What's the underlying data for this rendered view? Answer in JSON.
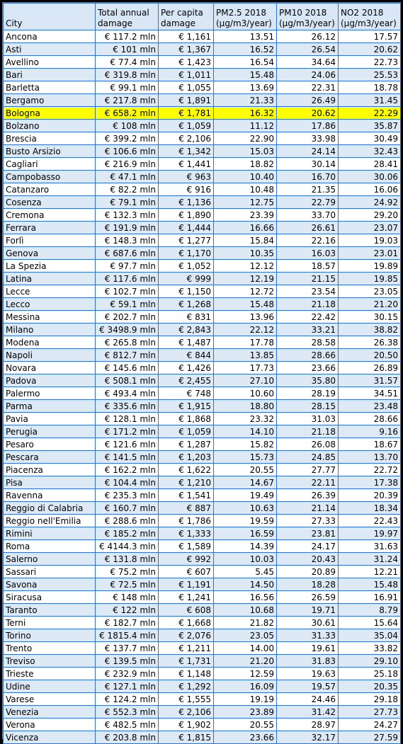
{
  "headers": {
    "city": "City",
    "total_damage": "Total annual damage",
    "per_capita": "Per capita damage",
    "pm25": "PM2.5 2018 (μg/m3/year)",
    "pm10": "PM10 2018 (μg/m3/year)",
    "no2": "NO2 2018 (μg/m3/year)"
  },
  "highlight_color": "#ffff00",
  "rows": [
    {
      "city": "Ancona",
      "total": "€ 117.2 mln",
      "per_capita": "€ 1,161",
      "pm25": "13.51",
      "pm10": "26.12",
      "no2": "17.57"
    },
    {
      "city": "Asti",
      "total": "€ 101 mln",
      "per_capita": "€ 1,367",
      "pm25": "16.52",
      "pm10": "26.54",
      "no2": "20.62"
    },
    {
      "city": "Avellino",
      "total": "€ 77.4 mln",
      "per_capita": "€ 1,423",
      "pm25": "16.54",
      "pm10": "34.64",
      "no2": "22.73"
    },
    {
      "city": "Bari",
      "total": "€ 319.8 mln",
      "per_capita": "€ 1,011",
      "pm25": "15.48",
      "pm10": "24.06",
      "no2": "25.53"
    },
    {
      "city": "Barletta",
      "total": "€ 99.1 mln",
      "per_capita": "€ 1,055",
      "pm25": "13.69",
      "pm10": "22.31",
      "no2": "18.78"
    },
    {
      "city": "Bergamo",
      "total": "€ 217.8 mln",
      "per_capita": "€ 1,891",
      "pm25": "21.33",
      "pm10": "26.49",
      "no2": "31.45"
    },
    {
      "city": "Bologna",
      "total": "€ 658.2 mln",
      "per_capita": "€ 1,781",
      "pm25": "16.32",
      "pm10": "20.62",
      "no2": "22.29",
      "highlight": true
    },
    {
      "city": "Bolzano",
      "total": "€ 108 mln",
      "per_capita": "€ 1,059",
      "pm25": "11.12",
      "pm10": "17.86",
      "no2": "35.87"
    },
    {
      "city": "Brescia",
      "total": "€ 399.2 mln",
      "per_capita": "€ 2,106",
      "pm25": "22.90",
      "pm10": "33.98",
      "no2": "30.49"
    },
    {
      "city": "Busto Arsizio",
      "total": "€ 106.6 mln",
      "per_capita": "€ 1,342",
      "pm25": "15.03",
      "pm10": "24.14",
      "no2": "32.43"
    },
    {
      "city": "Cagliari",
      "total": "€ 216.9 mln",
      "per_capita": "€ 1,441",
      "pm25": "18.82",
      "pm10": "30.14",
      "no2": "28.41"
    },
    {
      "city": "Campobasso",
      "total": "€ 47.1 mln",
      "per_capita": "€ 963",
      "pm25": "10.40",
      "pm10": "16.70",
      "no2": "30.06"
    },
    {
      "city": "Catanzaro",
      "total": "€ 82.2 mln",
      "per_capita": "€ 916",
      "pm25": "10.48",
      "pm10": "21.35",
      "no2": "16.06"
    },
    {
      "city": "Cosenza",
      "total": "€ 79.1 mln",
      "per_capita": "€ 1,136",
      "pm25": "12.75",
      "pm10": "22.79",
      "no2": "24.92"
    },
    {
      "city": "Cremona",
      "total": "€ 132.3 mln",
      "per_capita": "€ 1,890",
      "pm25": "23.39",
      "pm10": "33.70",
      "no2": "29.20"
    },
    {
      "city": "Ferrara",
      "total": "€ 191.9 mln",
      "per_capita": "€ 1,444",
      "pm25": "16.66",
      "pm10": "26.61",
      "no2": "23.07"
    },
    {
      "city": "Forlì",
      "total": "€ 148.3 mln",
      "per_capita": "€ 1,277",
      "pm25": "15.84",
      "pm10": "22.16",
      "no2": "19.03"
    },
    {
      "city": "Genova",
      "total": "€ 687.6 mln",
      "per_capita": "€ 1,170",
      "pm25": "10.35",
      "pm10": "16.03",
      "no2": "23.01"
    },
    {
      "city": "La Spezia",
      "total": "€ 97.7 mln",
      "per_capita": "€ 1,052",
      "pm25": "12.12",
      "pm10": "18.57",
      "no2": "19.89"
    },
    {
      "city": "Latina",
      "total": "€ 117.6 mln",
      "per_capita": "€ 999",
      "pm25": "12.19",
      "pm10": "21.15",
      "no2": "19.85"
    },
    {
      "city": "Lecce",
      "total": "€ 102.7 mln",
      "per_capita": "€ 1,150",
      "pm25": "12.72",
      "pm10": "23.54",
      "no2": "23.05"
    },
    {
      "city": "Lecco",
      "total": "€ 59.1 mln",
      "per_capita": "€ 1,268",
      "pm25": "15.48",
      "pm10": "21.18",
      "no2": "21.20"
    },
    {
      "city": "Messina",
      "total": "€ 202.7 mln",
      "per_capita": "€ 831",
      "pm25": "13.96",
      "pm10": "22.42",
      "no2": "30.15"
    },
    {
      "city": "Milano",
      "total": "€ 3498.9 mln",
      "per_capita": "€ 2,843",
      "pm25": "22.12",
      "pm10": "33.21",
      "no2": "38.82"
    },
    {
      "city": "Modena",
      "total": "€ 265.8 mln",
      "per_capita": "€ 1,487",
      "pm25": "17.78",
      "pm10": "28.58",
      "no2": "26.38"
    },
    {
      "city": "Napoli",
      "total": "€ 812.7 mln",
      "per_capita": "€ 844",
      "pm25": "13.85",
      "pm10": "28.66",
      "no2": "20.50"
    },
    {
      "city": "Novara",
      "total": "€ 145.6 mln",
      "per_capita": "€ 1,426",
      "pm25": "17.73",
      "pm10": "23.66",
      "no2": "26.89"
    },
    {
      "city": "Padova",
      "total": "€ 508.1 mln",
      "per_capita": "€ 2,455",
      "pm25": "27.10",
      "pm10": "35.80",
      "no2": "31.57"
    },
    {
      "city": "Palermo",
      "total": "€ 493.4 mln",
      "per_capita": "€ 748",
      "pm25": "10.60",
      "pm10": "28.19",
      "no2": "34.51"
    },
    {
      "city": "Parma",
      "total": "€ 335.6 mln",
      "per_capita": "€ 1,915",
      "pm25": "18.80",
      "pm10": "28.15",
      "no2": "23.48"
    },
    {
      "city": "Pavia",
      "total": "€ 128.1 mln",
      "per_capita": "€ 1,868",
      "pm25": "23.32",
      "pm10": "31.03",
      "no2": "28.66"
    },
    {
      "city": "Perugia",
      "total": "€ 171.2 mln",
      "per_capita": "€ 1,059",
      "pm25": "14.10",
      "pm10": "21.18",
      "no2": "9.16"
    },
    {
      "city": "Pesaro",
      "total": "€ 121.6 mln",
      "per_capita": "€ 1,287",
      "pm25": "15.82",
      "pm10": "26.08",
      "no2": "18.67"
    },
    {
      "city": "Pescara",
      "total": "€ 141.5 mln",
      "per_capita": "€ 1,203",
      "pm25": "15.73",
      "pm10": "24.85",
      "no2": "13.70"
    },
    {
      "city": "Piacenza",
      "total": "€ 162.2 mln",
      "per_capita": "€ 1,622",
      "pm25": "20.55",
      "pm10": "27.77",
      "no2": "22.72"
    },
    {
      "city": "Pisa",
      "total": "€ 104.4 mln",
      "per_capita": "€ 1,210",
      "pm25": "14.67",
      "pm10": "22.11",
      "no2": "17.38"
    },
    {
      "city": "Ravenna",
      "total": "€ 235.3 mln",
      "per_capita": "€ 1,541",
      "pm25": "19.49",
      "pm10": "26.39",
      "no2": "20.39"
    },
    {
      "city": "Reggio di Calabria",
      "total": "€ 160.7 mln",
      "per_capita": "€ 887",
      "pm25": "10.63",
      "pm10": "21.14",
      "no2": "18.34"
    },
    {
      "city": "Reggio nell'Emilia",
      "total": "€ 288.6 mln",
      "per_capita": "€ 1,786",
      "pm25": "19.59",
      "pm10": "27.33",
      "no2": "22.43"
    },
    {
      "city": "Rimini",
      "total": "€ 185.2 mln",
      "per_capita": "€ 1,333",
      "pm25": "16.59",
      "pm10": "23.81",
      "no2": "19.97"
    },
    {
      "city": "Roma",
      "total": "€ 4144.3 mln",
      "per_capita": "€ 1,589",
      "pm25": "14.39",
      "pm10": "24.17",
      "no2": "31.63"
    },
    {
      "city": "Salerno",
      "total": "€ 131.8 mln",
      "per_capita": "€ 992",
      "pm25": "10.03",
      "pm10": "20.43",
      "no2": "31.24"
    },
    {
      "city": "Sassari",
      "total": "€ 75.2 mln",
      "per_capita": "€ 607",
      "pm25": "5.45",
      "pm10": "20.89",
      "no2": "12.21"
    },
    {
      "city": "Savona",
      "total": "€ 72.5 mln",
      "per_capita": "€ 1,191",
      "pm25": "14.50",
      "pm10": "18.28",
      "no2": "15.48"
    },
    {
      "city": "Siracusa",
      "total": "€ 148 mln",
      "per_capita": "€ 1,241",
      "pm25": "16.56",
      "pm10": "26.59",
      "no2": "16.91"
    },
    {
      "city": "Taranto",
      "total": "€ 122 mln",
      "per_capita": "€ 608",
      "pm25": "10.68",
      "pm10": "19.71",
      "no2": "8.79"
    },
    {
      "city": "Terni",
      "total": "€ 182.7 mln",
      "per_capita": "€ 1,668",
      "pm25": "21.82",
      "pm10": "30.61",
      "no2": "15.64"
    },
    {
      "city": "Torino",
      "total": "€ 1815.4 mln",
      "per_capita": "€ 2,076",
      "pm25": "23.05",
      "pm10": "31.33",
      "no2": "35.04"
    },
    {
      "city": "Trento",
      "total": "€ 137.7 mln",
      "per_capita": "€ 1,211",
      "pm25": "14.00",
      "pm10": "19.61",
      "no2": "33.82"
    },
    {
      "city": "Treviso",
      "total": "€ 139.5 mln",
      "per_capita": "€ 1,731",
      "pm25": "21.20",
      "pm10": "31.83",
      "no2": "29.10"
    },
    {
      "city": "Trieste",
      "total": "€ 232.9 mln",
      "per_capita": "€ 1,148",
      "pm25": "12.59",
      "pm10": "19.63",
      "no2": "25.18"
    },
    {
      "city": "Udine",
      "total": "€ 127.1 mln",
      "per_capita": "€ 1,292",
      "pm25": "16.09",
      "pm10": "19.57",
      "no2": "20.35"
    },
    {
      "city": "Varese",
      "total": "€ 124.2 mln",
      "per_capita": "€ 1,555",
      "pm25": "19.19",
      "pm10": "24.46",
      "no2": "29.18"
    },
    {
      "city": "Venezia",
      "total": "€ 552.3 mln",
      "per_capita": "€ 2,106",
      "pm25": "23.89",
      "pm10": "31.42",
      "no2": "27.73"
    },
    {
      "city": "Verona",
      "total": "€ 482.5 mln",
      "per_capita": "€ 1,902",
      "pm25": "20.55",
      "pm10": "28.97",
      "no2": "24.27"
    },
    {
      "city": "Vicenza",
      "total": "€ 203.8 mln",
      "per_capita": "€ 1,815",
      "pm25": "23.66",
      "pm10": "32.17",
      "no2": "27.59"
    }
  ]
}
